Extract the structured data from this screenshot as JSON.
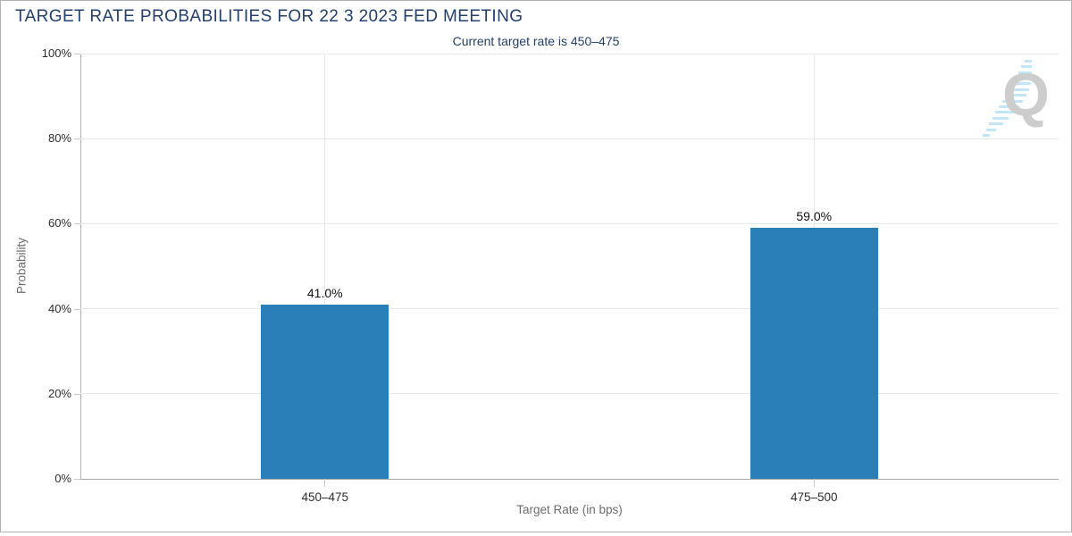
{
  "header": {
    "title": "TARGET RATE PROBABILITIES FOR 22 3 2023 FED MEETING",
    "subtitle": "Current target rate is 450–475"
  },
  "watermark": {
    "letter": "Q"
  },
  "colors": {
    "title_navy": "#24406e",
    "bar_blue": "#2a7fb8",
    "gridline": "#e9e9e9",
    "axis_line": "#a8a8a8",
    "watermark_gray": "#cdcdcd",
    "watermark_dash_blue": "#c2e6f6"
  },
  "chart_data": {
    "type": "bar",
    "title": "TARGET RATE PROBABILITIES FOR 22 3 2023 FED MEETING",
    "subtitle": "Current target rate is 450–475",
    "categories": [
      "450–475",
      "475–500"
    ],
    "values": [
      41.0,
      59.0
    ],
    "data_labels": [
      "41.0%",
      "59.0%"
    ],
    "xlabel": "Target Rate (in bps)",
    "ylabel": "Probability",
    "ylim": [
      0,
      100
    ],
    "yticks": [
      0,
      20,
      40,
      60,
      80,
      100
    ],
    "ytick_labels": [
      "0%",
      "20%",
      "40%",
      "60%",
      "80%",
      "100%"
    ],
    "grid": true,
    "legend": false,
    "bar_color": "#2a7fb8"
  }
}
